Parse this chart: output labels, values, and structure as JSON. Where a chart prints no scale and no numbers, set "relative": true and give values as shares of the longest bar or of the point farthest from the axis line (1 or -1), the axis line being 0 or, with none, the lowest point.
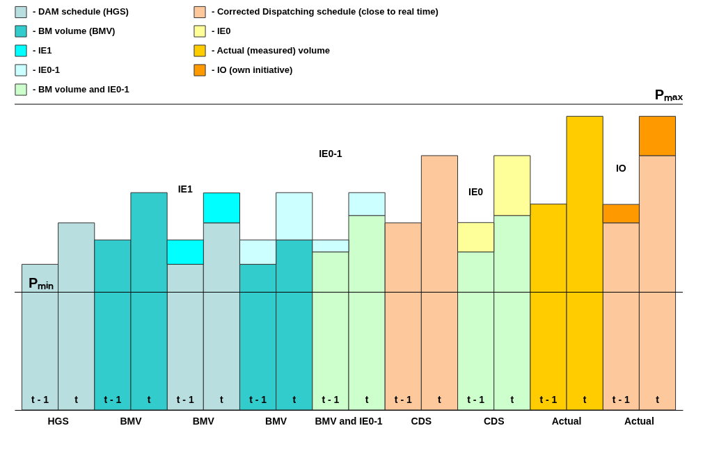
{
  "chart_data": {
    "type": "bar",
    "stacked": true,
    "relative": true,
    "legend": "top",
    "grid": false,
    "categories": [
      "t - 1",
      "t",
      "t - 1",
      "t",
      "t - 1",
      "t",
      "t - 1",
      "t",
      "t - 1",
      "t",
      "t - 1",
      "t",
      "t - 1",
      "t",
      "t - 1",
      "t",
      "t - 1",
      "t"
    ],
    "series": [
      {
        "name": "- DAM schedule (HGS)",
        "color": "#b8dee0",
        "values": [
          0.496,
          0.637,
          null,
          null,
          0.496,
          0.637,
          null,
          null,
          null,
          null,
          null,
          null,
          null,
          null,
          null,
          null,
          null,
          null
        ]
      },
      {
        "name": "- BM volume (BMV)",
        "color": "#33cccc",
        "values": [
          null,
          null,
          0.579,
          0.74,
          null,
          null,
          0.496,
          0.579,
          null,
          null,
          null,
          null,
          null,
          null,
          null,
          null,
          null,
          null
        ]
      },
      {
        "name": "- BM volume and IE0-1",
        "color": "#ccffcc",
        "values": [
          null,
          null,
          null,
          null,
          null,
          null,
          null,
          null,
          0.538,
          0.662,
          null,
          null,
          0.538,
          0.662,
          null,
          null,
          null,
          null
        ]
      },
      {
        "name": "- Corrected Dispatching schedule (close to real time)",
        "color": "#fcc89c",
        "values": [
          null,
          null,
          null,
          null,
          null,
          null,
          null,
          null,
          null,
          null,
          0.637,
          0.866,
          null,
          null,
          null,
          null,
          0.637,
          0.866
        ]
      },
      {
        "name": "- Actual (measured) volume",
        "color": "#ffcc00",
        "values": [
          null,
          null,
          null,
          null,
          null,
          null,
          null,
          null,
          null,
          null,
          null,
          null,
          null,
          null,
          0.701,
          1,
          null,
          null
        ]
      },
      {
        "name": "- IE1",
        "color": "#00ffff",
        "values": [
          null,
          null,
          null,
          null,
          0.083,
          0.102,
          null,
          null,
          null,
          null,
          null,
          null,
          null,
          null,
          null,
          null,
          null,
          null
        ]
      },
      {
        "name": "- IE0-1",
        "color": "#ccffff",
        "values": [
          null,
          null,
          null,
          null,
          null,
          null,
          0.083,
          0.161,
          0.041,
          0.078,
          null,
          null,
          null,
          null,
          null,
          null,
          null,
          null
        ]
      },
      {
        "name": "- IE0",
        "color": "#ffff99",
        "values": [
          null,
          null,
          null,
          null,
          null,
          null,
          null,
          null,
          null,
          null,
          null,
          null,
          0.1,
          0.204,
          null,
          null,
          null,
          null
        ]
      },
      {
        "name": "- IO (own initiative)",
        "color": "#ff9900",
        "values": [
          null,
          null,
          null,
          null,
          null,
          null,
          null,
          null,
          null,
          null,
          null,
          null,
          null,
          null,
          null,
          null,
          0.063,
          0.134
        ]
      }
    ],
    "ref_lines": [
      {
        "axis": "y",
        "value": 0.401,
        "label": "Pₘᵢₙ"
      },
      {
        "axis": "y",
        "value": 1.041,
        "label": "Pₘₐₓ"
      }
    ],
    "annotations": [
      "IE1",
      "IE0-1",
      "IE0",
      "IO",
      "HGS",
      "BMV",
      "BMV",
      "BMV",
      "BMV and IE0-1",
      "CDS",
      "CDS",
      "Actual",
      "Actual"
    ]
  }
}
